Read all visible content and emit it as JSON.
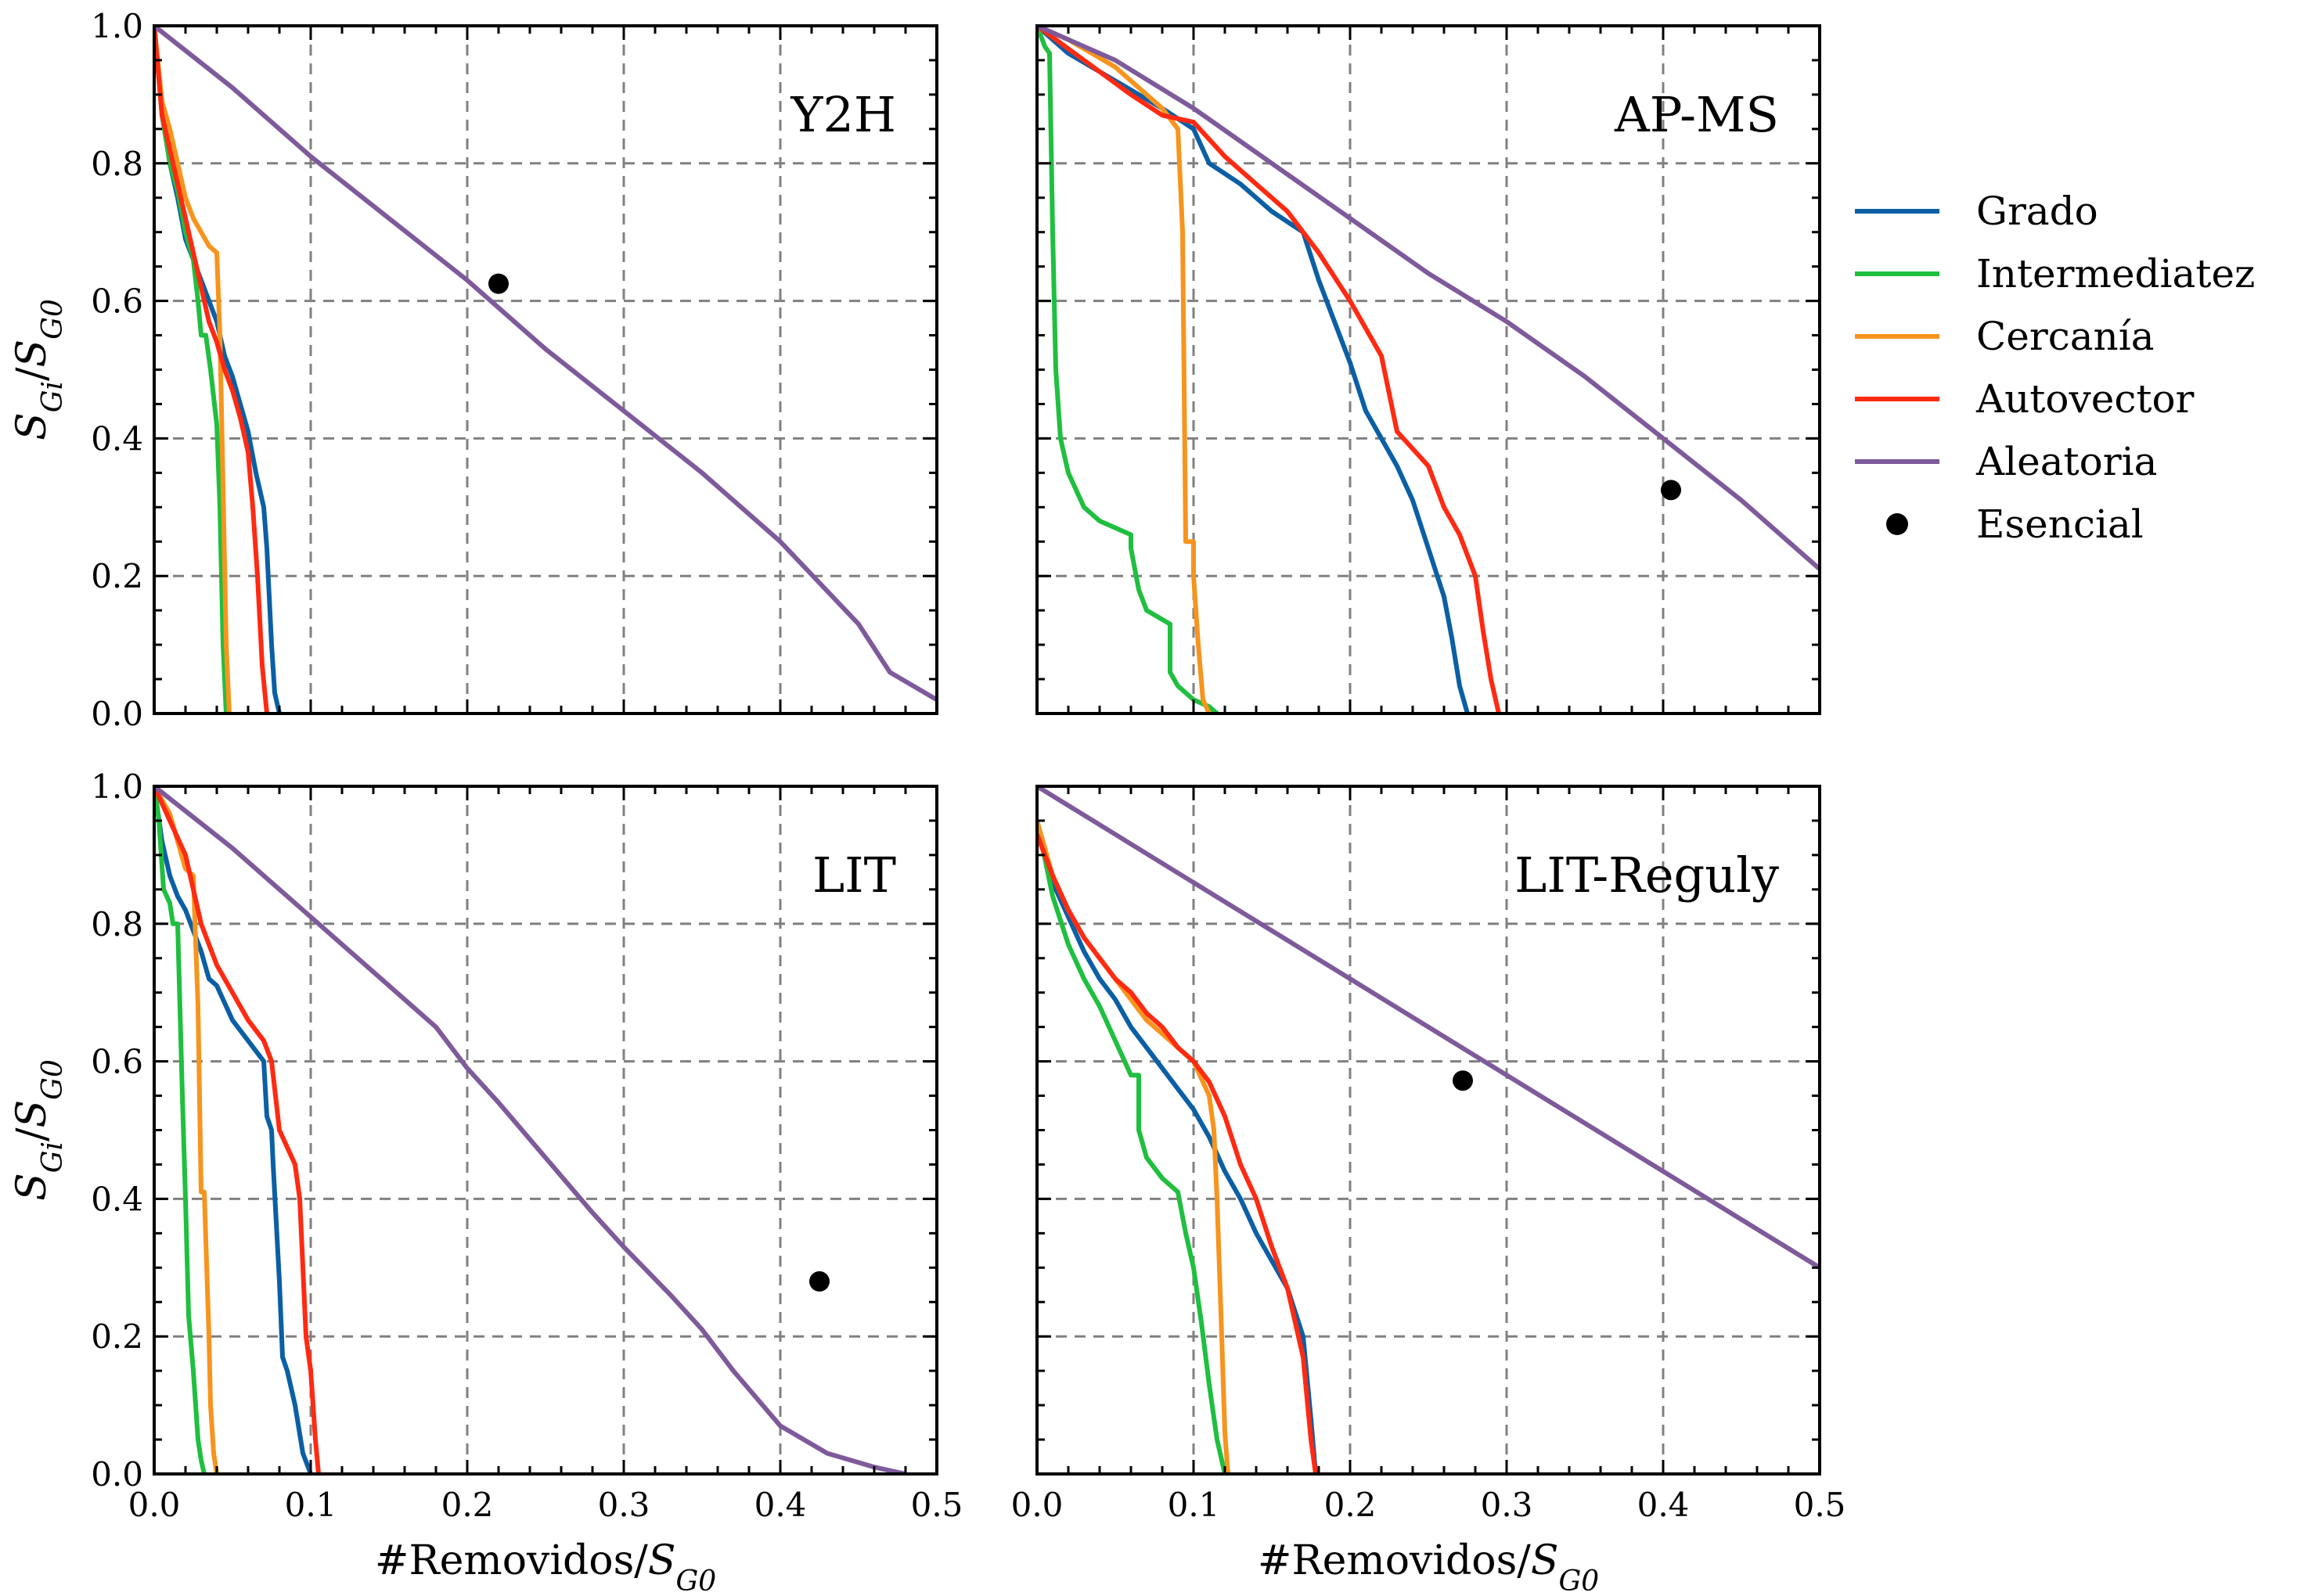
{
  "chart_data": {
    "type": "line",
    "layout": "2x2 grid, shared x and y axes",
    "grid": "dashed, on",
    "legend_position": "right, outside",
    "xlabel": "#Removidos/",
    "xlabel_subject": "S",
    "xlabel_sub": "G0",
    "ylabel_num": "S",
    "ylabel_num_sub": "Gi",
    "ylabel_sep": "/",
    "ylabel_den": "S",
    "ylabel_den_sub": "G0",
    "xlim": [
      0,
      0.5
    ],
    "ylim": [
      0,
      1.0
    ],
    "x_ticks": [
      "0.0",
      "0.1",
      "0.2",
      "0.3",
      "0.4",
      "0.5"
    ],
    "y_ticks": [
      "0.0",
      "0.2",
      "0.4",
      "0.6",
      "0.8",
      "1.0"
    ],
    "x_tick_values": [
      0,
      0.1,
      0.2,
      0.3,
      0.4,
      0.5
    ],
    "y_tick_values": [
      0,
      0.2,
      0.4,
      0.6,
      0.8,
      1.0
    ],
    "legend": [
      {
        "name": "Grado",
        "color": "#0b5fa5",
        "kind": "line"
      },
      {
        "name": "Intermediatez",
        "color": "#1fbf3f",
        "kind": "line"
      },
      {
        "name": "Cercanía",
        "color": "#f7941d",
        "kind": "line"
      },
      {
        "name": "Autovector",
        "color": "#ff2a12",
        "kind": "line"
      },
      {
        "name": "Aleatoria",
        "color": "#7e5a9b",
        "kind": "line"
      },
      {
        "name": "Esencial",
        "color": "#000000",
        "kind": "marker"
      }
    ],
    "panels": [
      {
        "title": "Y2H",
        "series": [
          {
            "name": "Grado",
            "x": [
              0,
              0.005,
              0.01,
              0.015,
              0.02,
              0.025,
              0.03,
              0.035,
              0.04,
              0.045,
              0.05,
              0.055,
              0.06,
              0.065,
              0.07,
              0.072,
              0.075,
              0.077,
              0.08
            ],
            "y": [
              1.0,
              0.88,
              0.8,
              0.75,
              0.69,
              0.66,
              0.63,
              0.6,
              0.57,
              0.52,
              0.49,
              0.45,
              0.41,
              0.35,
              0.3,
              0.24,
              0.1,
              0.03,
              0.0
            ]
          },
          {
            "name": "Intermediatez",
            "x": [
              0,
              0.005,
              0.01,
              0.015,
              0.02,
              0.025,
              0.028,
              0.03,
              0.033,
              0.036,
              0.04,
              0.042,
              0.044,
              0.046
            ],
            "y": [
              1.0,
              0.87,
              0.8,
              0.76,
              0.7,
              0.66,
              0.6,
              0.55,
              0.55,
              0.5,
              0.42,
              0.3,
              0.1,
              0.0
            ]
          },
          {
            "name": "Cercanía",
            "x": [
              0,
              0.005,
              0.01,
              0.015,
              0.02,
              0.025,
              0.03,
              0.035,
              0.04,
              0.042,
              0.044,
              0.046,
              0.048
            ],
            "y": [
              1.0,
              0.89,
              0.85,
              0.8,
              0.75,
              0.72,
              0.7,
              0.68,
              0.67,
              0.55,
              0.33,
              0.1,
              0.0
            ]
          },
          {
            "name": "Autovector",
            "x": [
              0,
              0.005,
              0.01,
              0.015,
              0.02,
              0.025,
              0.03,
              0.035,
              0.04,
              0.045,
              0.05,
              0.055,
              0.06,
              0.063,
              0.066,
              0.069,
              0.072
            ],
            "y": [
              1.0,
              0.87,
              0.82,
              0.77,
              0.72,
              0.67,
              0.62,
              0.57,
              0.54,
              0.5,
              0.47,
              0.43,
              0.38,
              0.3,
              0.2,
              0.07,
              0.0
            ]
          },
          {
            "name": "Aleatoria",
            "x": [
              0,
              0.05,
              0.1,
              0.15,
              0.2,
              0.25,
              0.3,
              0.35,
              0.4,
              0.45,
              0.47,
              0.5
            ],
            "y": [
              1.0,
              0.91,
              0.81,
              0.72,
              0.63,
              0.53,
              0.44,
              0.35,
              0.25,
              0.13,
              0.06,
              0.02
            ]
          }
        ],
        "esencial": {
          "x": 0.22,
          "y": 0.625
        }
      },
      {
        "title": "AP-MS",
        "series": [
          {
            "name": "Grado",
            "x": [
              0,
              0.02,
              0.05,
              0.08,
              0.1,
              0.11,
              0.13,
              0.15,
              0.17,
              0.18,
              0.19,
              0.2,
              0.21,
              0.22,
              0.23,
              0.24,
              0.25,
              0.26,
              0.265,
              0.27,
              0.275
            ],
            "y": [
              1.0,
              0.96,
              0.92,
              0.88,
              0.85,
              0.8,
              0.77,
              0.73,
              0.7,
              0.63,
              0.57,
              0.51,
              0.44,
              0.4,
              0.36,
              0.31,
              0.24,
              0.17,
              0.11,
              0.04,
              0.0
            ]
          },
          {
            "name": "Intermediatez",
            "x": [
              0,
              0.005,
              0.008,
              0.01,
              0.012,
              0.015,
              0.02,
              0.03,
              0.04,
              0.06,
              0.06,
              0.065,
              0.07,
              0.085,
              0.085,
              0.09,
              0.1,
              0.11,
              0.115
            ],
            "y": [
              1.0,
              0.97,
              0.96,
              0.7,
              0.5,
              0.4,
              0.35,
              0.3,
              0.28,
              0.26,
              0.24,
              0.18,
              0.15,
              0.13,
              0.06,
              0.04,
              0.02,
              0.01,
              0.0
            ]
          },
          {
            "name": "Cercanía",
            "x": [
              0,
              0.02,
              0.05,
              0.08,
              0.09,
              0.093,
              0.095,
              0.1,
              0.1,
              0.103,
              0.106,
              0.11
            ],
            "y": [
              1.0,
              0.98,
              0.94,
              0.88,
              0.85,
              0.7,
              0.25,
              0.25,
              0.2,
              0.1,
              0.02,
              0.0
            ]
          },
          {
            "name": "Autovector",
            "x": [
              0,
              0.03,
              0.06,
              0.08,
              0.1,
              0.12,
              0.14,
              0.16,
              0.18,
              0.2,
              0.22,
              0.23,
              0.25,
              0.26,
              0.27,
              0.28,
              0.285,
              0.29,
              0.295
            ],
            "y": [
              1.0,
              0.95,
              0.9,
              0.87,
              0.86,
              0.81,
              0.77,
              0.73,
              0.67,
              0.6,
              0.52,
              0.41,
              0.36,
              0.3,
              0.26,
              0.2,
              0.12,
              0.05,
              0.0
            ]
          },
          {
            "name": "Aleatoria",
            "x": [
              0,
              0.05,
              0.1,
              0.15,
              0.2,
              0.25,
              0.3,
              0.35,
              0.4,
              0.45,
              0.5
            ],
            "y": [
              1.0,
              0.95,
              0.88,
              0.8,
              0.72,
              0.64,
              0.57,
              0.49,
              0.4,
              0.31,
              0.21
            ]
          }
        ],
        "esencial": {
          "x": 0.405,
          "y": 0.325
        }
      },
      {
        "title": "LIT",
        "series": [
          {
            "name": "Grado",
            "x": [
              0,
              0.005,
              0.01,
              0.015,
              0.02,
              0.03,
              0.035,
              0.04,
              0.05,
              0.06,
              0.07,
              0.072,
              0.075,
              0.076,
              0.08,
              0.082,
              0.085,
              0.09,
              0.095,
              0.1
            ],
            "y": [
              1.0,
              0.92,
              0.87,
              0.84,
              0.82,
              0.76,
              0.72,
              0.71,
              0.66,
              0.63,
              0.6,
              0.52,
              0.5,
              0.45,
              0.28,
              0.17,
              0.15,
              0.1,
              0.03,
              0.0
            ]
          },
          {
            "name": "Intermediatez",
            "x": [
              0,
              0.003,
              0.006,
              0.01,
              0.012,
              0.015,
              0.018,
              0.02,
              0.022,
              0.025,
              0.028,
              0.03,
              0.032
            ],
            "y": [
              1.0,
              0.95,
              0.85,
              0.83,
              0.8,
              0.8,
              0.55,
              0.4,
              0.23,
              0.15,
              0.05,
              0.02,
              0.0
            ]
          },
          {
            "name": "Cercanía",
            "x": [
              0,
              0.01,
              0.02,
              0.025,
              0.028,
              0.03,
              0.032,
              0.035,
              0.036,
              0.038,
              0.04
            ],
            "y": [
              1.0,
              0.96,
              0.88,
              0.87,
              0.68,
              0.41,
              0.41,
              0.2,
              0.1,
              0.03,
              0.0
            ]
          },
          {
            "name": "Autovector",
            "x": [
              0,
              0.01,
              0.02,
              0.03,
              0.04,
              0.05,
              0.06,
              0.07,
              0.075,
              0.08,
              0.09,
              0.093,
              0.095,
              0.097,
              0.1,
              0.103,
              0.105
            ],
            "y": [
              1.0,
              0.95,
              0.9,
              0.8,
              0.74,
              0.7,
              0.66,
              0.63,
              0.6,
              0.5,
              0.45,
              0.4,
              0.3,
              0.2,
              0.15,
              0.05,
              0.0
            ]
          },
          {
            "name": "Aleatoria",
            "x": [
              0,
              0.05,
              0.1,
              0.15,
              0.18,
              0.2,
              0.22,
              0.25,
              0.28,
              0.3,
              0.33,
              0.35,
              0.37,
              0.4,
              0.43,
              0.46,
              0.48
            ],
            "y": [
              1.0,
              0.91,
              0.81,
              0.71,
              0.65,
              0.59,
              0.54,
              0.46,
              0.38,
              0.33,
              0.26,
              0.21,
              0.15,
              0.07,
              0.03,
              0.01,
              0.0
            ]
          }
        ],
        "esencial": {
          "x": 0.425,
          "y": 0.28
        }
      },
      {
        "title": "LIT-Reguly",
        "series": [
          {
            "name": "Grado",
            "x": [
              0,
              0.01,
              0.02,
              0.03,
              0.04,
              0.05,
              0.06,
              0.07,
              0.08,
              0.09,
              0.1,
              0.11,
              0.12,
              0.13,
              0.14,
              0.15,
              0.16,
              0.17,
              0.175,
              0.178
            ],
            "y": [
              0.95,
              0.86,
              0.81,
              0.76,
              0.72,
              0.69,
              0.65,
              0.62,
              0.59,
              0.56,
              0.53,
              0.49,
              0.44,
              0.4,
              0.35,
              0.31,
              0.27,
              0.2,
              0.08,
              0.0
            ]
          },
          {
            "name": "Intermediatez",
            "x": [
              0,
              0.01,
              0.02,
              0.03,
              0.04,
              0.05,
              0.06,
              0.065,
              0.065,
              0.07,
              0.08,
              0.09,
              0.095,
              0.1,
              0.105,
              0.11,
              0.115,
              0.12
            ],
            "y": [
              0.95,
              0.84,
              0.77,
              0.72,
              0.68,
              0.63,
              0.58,
              0.58,
              0.5,
              0.46,
              0.43,
              0.41,
              0.35,
              0.3,
              0.22,
              0.13,
              0.05,
              0.0
            ]
          },
          {
            "name": "Cercanía",
            "x": [
              0,
              0.01,
              0.02,
              0.03,
              0.04,
              0.05,
              0.06,
              0.07,
              0.08,
              0.09,
              0.1,
              0.11,
              0.113,
              0.115,
              0.118,
              0.12,
              0.122
            ],
            "y": [
              0.95,
              0.87,
              0.82,
              0.78,
              0.75,
              0.72,
              0.69,
              0.66,
              0.64,
              0.62,
              0.6,
              0.55,
              0.5,
              0.4,
              0.2,
              0.06,
              0.0
            ]
          },
          {
            "name": "Autovector",
            "x": [
              0,
              0.01,
              0.02,
              0.03,
              0.04,
              0.05,
              0.06,
              0.07,
              0.08,
              0.09,
              0.1,
              0.11,
              0.12,
              0.13,
              0.14,
              0.15,
              0.16,
              0.17,
              0.175,
              0.178
            ],
            "y": [
              0.93,
              0.87,
              0.82,
              0.78,
              0.75,
              0.72,
              0.7,
              0.67,
              0.65,
              0.62,
              0.6,
              0.57,
              0.52,
              0.45,
              0.4,
              0.33,
              0.27,
              0.17,
              0.05,
              0.0
            ]
          },
          {
            "name": "Aleatoria",
            "x": [
              0,
              0.05,
              0.1,
              0.15,
              0.2,
              0.25,
              0.3,
              0.35,
              0.4,
              0.45,
              0.5
            ],
            "y": [
              1.0,
              0.93,
              0.86,
              0.79,
              0.72,
              0.65,
              0.58,
              0.51,
              0.44,
              0.37,
              0.3
            ]
          }
        ],
        "esencial": {
          "x": 0.272,
          "y": 0.572
        }
      }
    ]
  }
}
